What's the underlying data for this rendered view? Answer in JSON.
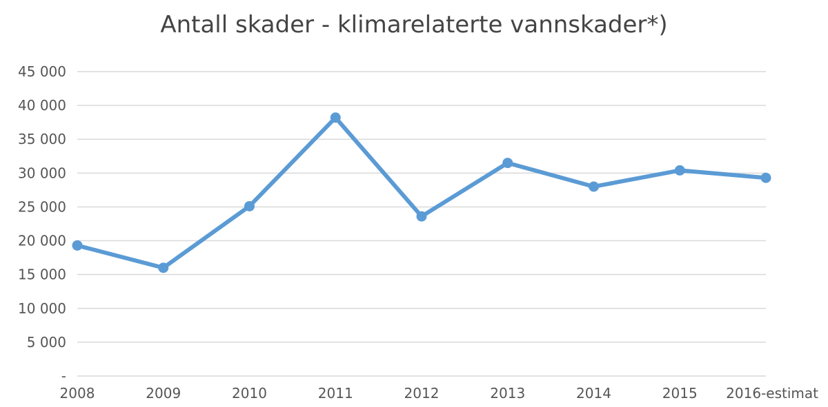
{
  "chart_data": {
    "type": "line",
    "title": "Antall skader - klimarelaterte vannskader*)",
    "xlabel": "",
    "ylabel": "",
    "categories": [
      "2008",
      "2009",
      "2010",
      "2011",
      "2012",
      "2013",
      "2014",
      "2015",
      "2016-estimat"
    ],
    "series": [
      {
        "values": [
          19300,
          16000,
          25100,
          38200,
          23600,
          31500,
          28000,
          30400,
          29300
        ]
      }
    ],
    "ylim": [
      0,
      45000
    ],
    "yticks": [
      0,
      5000,
      10000,
      15000,
      20000,
      25000,
      30000,
      35000,
      40000,
      45000
    ],
    "ytick_labels": [
      "-",
      "5 000",
      "10 000",
      "15 000",
      "20 000",
      "25 000",
      "30 000",
      "35 000",
      "40 000",
      "45 000"
    ],
    "grid": true,
    "legend": "none",
    "colors": {
      "line": "#5b9bd5",
      "grid": "#d9d9d9",
      "text": "#555555",
      "title": "#444444"
    }
  }
}
